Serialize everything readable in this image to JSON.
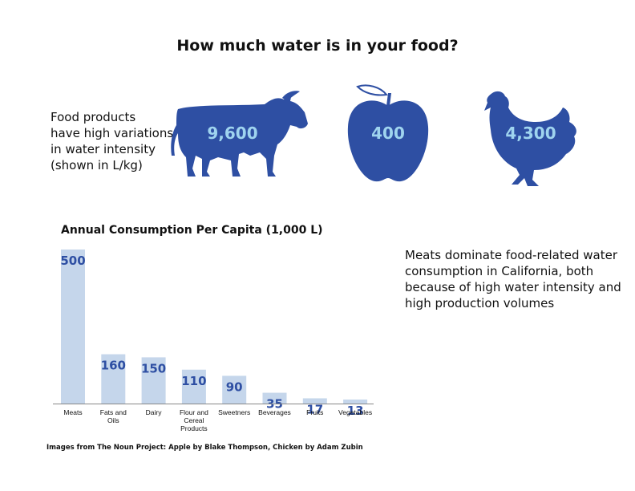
{
  "title": "How much water is in your food?",
  "intro_lines": [
    "Food products",
    "have high variations",
    "in water intensity",
    "(shown in L/kg)"
  ],
  "icons": [
    {
      "icon": "cow-icon",
      "value": "9,600"
    },
    {
      "icon": "apple-icon",
      "value": "400"
    },
    {
      "icon": "chicken-icon",
      "value": "4,300"
    }
  ],
  "side_note_lines": [
    "Meats dominate food-related water",
    "consumption in California, both",
    "because of high water intensity and",
    "high production volumes"
  ],
  "credit": "Images from The Noun Project: Apple by Blake Thompson, Chicken by Adam Zubin",
  "colors": {
    "icon_fill": "#2e4fa3",
    "icon_value": "#9fd4ef",
    "bar": "#c5d6eb",
    "bar_label": "#2e4fa3"
  },
  "chart_data": {
    "type": "bar",
    "title": "Annual Consumption Per Capita (1,000 L)",
    "categories": [
      [
        "Meats"
      ],
      [
        "Fats and",
        "Oils"
      ],
      [
        "Dairy"
      ],
      [
        "Flour and",
        "Cereal",
        "Products"
      ],
      [
        "Sweetners"
      ],
      [
        "Beverages"
      ],
      [
        "Fruits"
      ],
      [
        "Vegetables"
      ]
    ],
    "values": [
      500,
      160,
      150,
      110,
      90,
      35,
      17,
      13
    ],
    "ylim": [
      0,
      500
    ],
    "grid": false,
    "legend": "none"
  }
}
